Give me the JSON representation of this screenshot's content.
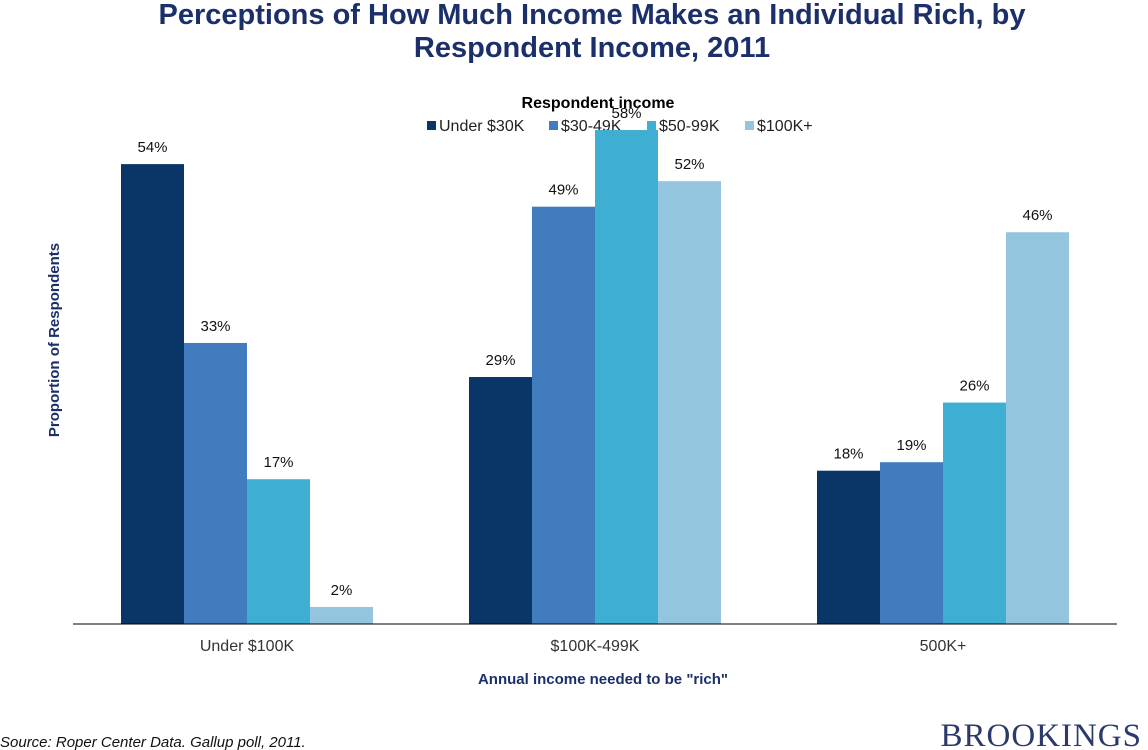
{
  "chart_data": {
    "type": "bar",
    "title_lines": [
      "Perceptions of How Much Income Makes an Individual Rich, by",
      "Respondent Income, 2011"
    ],
    "legend_title": "Respondent income",
    "categories": [
      "Under $100K",
      "$100K-499K",
      "500K+"
    ],
    "series": [
      {
        "name": "Under $30K",
        "color": "#0a3567",
        "values": [
          54,
          29,
          18
        ],
        "labels": [
          "54%",
          "29%",
          "18%"
        ]
      },
      {
        "name": "$30-49K",
        "color": "#417dbe",
        "values": [
          33,
          49,
          19
        ],
        "labels": [
          "33%",
          "49%",
          "19%"
        ]
      },
      {
        "name": "$50-99K",
        "color": "#3eaed3",
        "values": [
          17,
          58,
          26
        ],
        "labels": [
          "17%",
          "58%",
          "26%"
        ]
      },
      {
        "name": "$100K+",
        "color": "#93c6de",
        "values": [
          2,
          52,
          46
        ],
        "labels": [
          "2%",
          "52%",
          "46%"
        ]
      }
    ],
    "xlabel": "Annual  income  needed  to be \"rich\"",
    "ylabel": "Proportion  of Respondents",
    "ylim": [
      0,
      60
    ],
    "grid": false,
    "legend_position": "top-center"
  },
  "footer": {
    "source": "Source: Roper Center Data. Gallup poll, 2011.",
    "logo": "BROOKINGS"
  }
}
